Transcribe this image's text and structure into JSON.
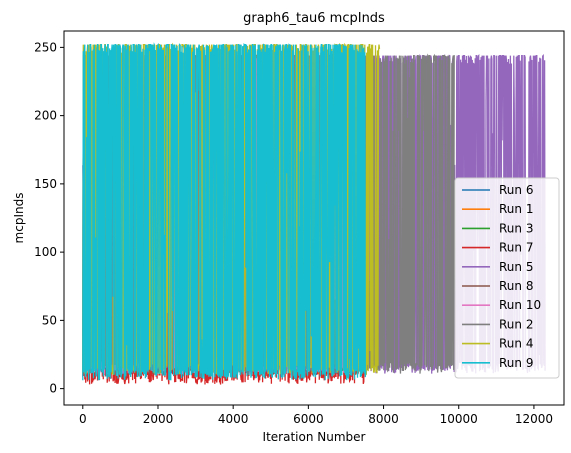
{
  "chart_data": {
    "type": "line",
    "title": "graph6_tau6 mcpInds",
    "xlabel": "Iteration Number",
    "ylabel": "mcpInds",
    "xlim": [
      -500,
      12800
    ],
    "ylim": [
      -12,
      262
    ],
    "xticks": [
      0,
      2000,
      4000,
      6000,
      8000,
      10000,
      12000
    ],
    "yticks": [
      0,
      50,
      100,
      150,
      200,
      250
    ],
    "grid": false,
    "legend_position": "center-right",
    "series": [
      {
        "name": "Run 6",
        "color": "#1f77b4",
        "length": 7500,
        "low": 10,
        "high": 244
      },
      {
        "name": "Run 1",
        "color": "#ff7f0e",
        "length": 7500,
        "low": 10,
        "high": 244
      },
      {
        "name": "Run 3",
        "color": "#2ca02c",
        "length": 7500,
        "low": 10,
        "high": 244
      },
      {
        "name": "Run 7",
        "color": "#d62728",
        "length": 7500,
        "low": 3,
        "high": 244
      },
      {
        "name": "Run 5",
        "color": "#9467bd",
        "length": 12300,
        "low": 11,
        "high": 244
      },
      {
        "name": "Run 8",
        "color": "#8c564b",
        "length": 7500,
        "low": 10,
        "high": 244
      },
      {
        "name": "Run 10",
        "color": "#e377c2",
        "length": 7500,
        "low": 10,
        "high": 244
      },
      {
        "name": "Run 2",
        "color": "#7f7f7f",
        "length": 9900,
        "low": 11,
        "high": 244
      },
      {
        "name": "Run 4",
        "color": "#bcbd22",
        "length": 7900,
        "low": 10,
        "high": 252
      },
      {
        "name": "Run 9",
        "color": "#17becf",
        "length": 7550,
        "low": 6,
        "high": 252
      }
    ]
  }
}
